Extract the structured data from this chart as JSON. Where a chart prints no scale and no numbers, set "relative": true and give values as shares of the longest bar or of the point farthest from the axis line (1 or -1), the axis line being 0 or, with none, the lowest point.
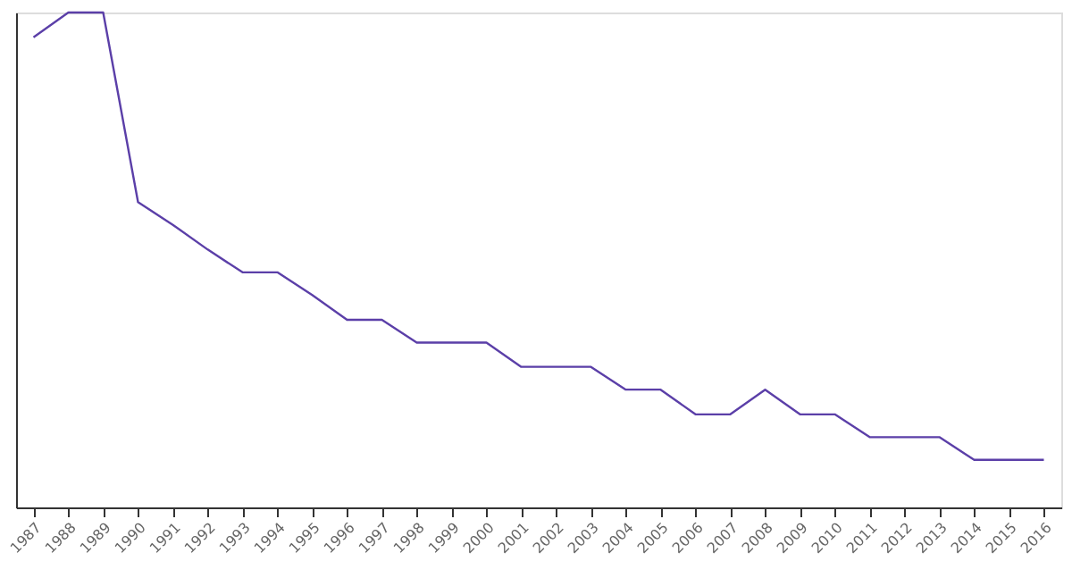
{
  "chart_data": {
    "type": "line",
    "relative": true,
    "categories": [
      "1987",
      "1988",
      "1989",
      "1990",
      "1991",
      "1992",
      "1993",
      "1994",
      "1995",
      "1996",
      "1997",
      "1998",
      "1999",
      "2000",
      "2001",
      "2002",
      "2003",
      "2004",
      "2005",
      "2006",
      "2007",
      "2008",
      "2009",
      "2010",
      "2011",
      "2012",
      "2013",
      "2014",
      "2015",
      "2016"
    ],
    "series": [
      {
        "color": "#5b3fa8",
        "values": [
          0.95,
          1,
          1,
          0.617,
          0.571,
          0.521,
          0.475,
          0.475,
          0.429,
          0.379,
          0.379,
          0.333,
          0.333,
          0.333,
          0.284,
          0.284,
          0.284,
          0.238,
          0.238,
          0.188,
          0.188,
          0.238,
          0.188,
          0.188,
          0.142,
          0.142,
          0.142,
          0.096,
          0.096,
          0.096
        ]
      }
    ],
    "grid": false,
    "marker": "none",
    "line_style": "solid"
  }
}
